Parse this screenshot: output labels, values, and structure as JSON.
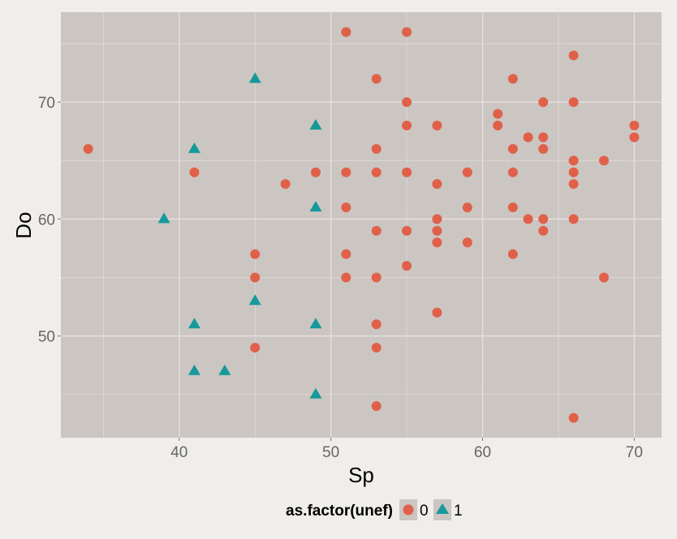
{
  "chart_data": {
    "type": "scatter",
    "title": "",
    "xlabel": "Sp",
    "ylabel": "Do",
    "xlim": [
      32.2,
      71.8
    ],
    "ylim": [
      41.3,
      77.7
    ],
    "x_ticks": [
      40,
      50,
      60,
      70
    ],
    "y_ticks": [
      50,
      60,
      70
    ],
    "grid": true,
    "legend": {
      "title": "as.factor(unef)",
      "position": "bottom",
      "entries": [
        "0",
        "1"
      ]
    },
    "colors": {
      "0": "#e0604a",
      "1": "#16999a",
      "panel": "#cbc6c2",
      "background": "#efeeec"
    },
    "series": [
      {
        "name": "0",
        "shape": "circle",
        "points": [
          [
            34,
            66
          ],
          [
            41,
            64
          ],
          [
            45,
            57
          ],
          [
            45,
            55
          ],
          [
            45,
            49
          ],
          [
            47,
            63
          ],
          [
            49,
            64
          ],
          [
            51,
            76
          ],
          [
            51,
            64
          ],
          [
            51,
            61
          ],
          [
            51,
            57
          ],
          [
            51,
            55
          ],
          [
            53,
            72
          ],
          [
            53,
            66
          ],
          [
            53,
            64
          ],
          [
            53,
            59
          ],
          [
            53,
            55
          ],
          [
            53,
            51
          ],
          [
            53,
            49
          ],
          [
            53,
            44
          ],
          [
            55,
            76
          ],
          [
            55,
            70
          ],
          [
            55,
            68
          ],
          [
            55,
            64
          ],
          [
            55,
            59
          ],
          [
            55,
            56
          ],
          [
            57,
            68
          ],
          [
            57,
            63
          ],
          [
            57,
            60
          ],
          [
            57,
            59
          ],
          [
            57,
            58
          ],
          [
            57,
            52
          ],
          [
            59,
            64
          ],
          [
            59,
            61
          ],
          [
            59,
            58
          ],
          [
            61,
            69
          ],
          [
            61,
            68
          ],
          [
            62,
            72
          ],
          [
            62,
            66
          ],
          [
            62,
            64
          ],
          [
            62,
            61
          ],
          [
            62,
            57
          ],
          [
            63,
            67
          ],
          [
            63,
            60
          ],
          [
            64,
            70
          ],
          [
            64,
            67
          ],
          [
            64,
            66
          ],
          [
            64,
            60
          ],
          [
            64,
            59
          ],
          [
            66,
            74
          ],
          [
            66,
            70
          ],
          [
            66,
            65
          ],
          [
            66,
            64
          ],
          [
            66,
            63
          ],
          [
            66,
            60
          ],
          [
            66,
            43
          ],
          [
            68,
            65
          ],
          [
            68,
            55
          ],
          [
            70,
            68
          ],
          [
            70,
            67
          ]
        ]
      },
      {
        "name": "1",
        "shape": "triangle",
        "points": [
          [
            39,
            60
          ],
          [
            41,
            66
          ],
          [
            41,
            51
          ],
          [
            41,
            47
          ],
          [
            43,
            47
          ],
          [
            45,
            72
          ],
          [
            45,
            53
          ],
          [
            49,
            68
          ],
          [
            49,
            61
          ],
          [
            49,
            51
          ],
          [
            49,
            45
          ]
        ]
      }
    ]
  }
}
